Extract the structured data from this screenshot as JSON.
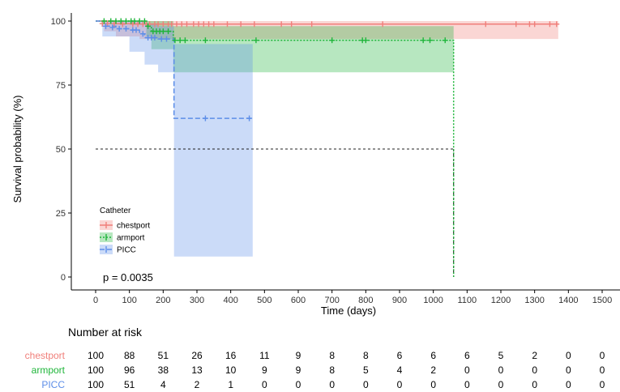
{
  "chart_data": {
    "type": "line",
    "subtype": "kaplan-meier",
    "xlabel": "Time (days)",
    "ylabel": "Survival probability (%)",
    "xlim": [
      0,
      1500
    ],
    "ylim": [
      0,
      100
    ],
    "x_ticks": [
      0,
      100,
      200,
      300,
      400,
      500,
      600,
      700,
      800,
      900,
      1000,
      1100,
      1200,
      1300,
      1400,
      1500
    ],
    "y_ticks": [
      0,
      25,
      50,
      75,
      100
    ],
    "grid": false,
    "median_reference": 50,
    "p_value": "p = 0.0035",
    "legend": {
      "title": "Catheter",
      "placement": "bottom-left",
      "entries": [
        "chestport",
        "armport",
        "PICC"
      ]
    },
    "series": [
      {
        "name": "chestport",
        "color": "#f07f7a",
        "dash": "solid",
        "steps": [
          [
            0,
            100
          ],
          [
            60,
            99
          ],
          [
            130,
            98.8
          ],
          [
            1370,
            98.8
          ]
        ],
        "ci_lower": [
          [
            0,
            100
          ],
          [
            25,
            96
          ],
          [
            60,
            94
          ],
          [
            130,
            93
          ],
          [
            1370,
            93
          ]
        ],
        "ci_upper": [
          [
            0,
            100
          ],
          [
            1370,
            100
          ]
        ],
        "censored": [
          [
            20,
            99
          ],
          [
            35,
            99
          ],
          [
            55,
            99
          ],
          [
            80,
            98.8
          ],
          [
            110,
            98.8
          ],
          [
            125,
            98.8
          ],
          [
            140,
            98.8
          ],
          [
            150,
            98.8
          ],
          [
            160,
            98.8
          ],
          [
            175,
            98.8
          ],
          [
            185,
            98.8
          ],
          [
            200,
            98.8
          ],
          [
            215,
            98.8
          ],
          [
            225,
            98.8
          ],
          [
            240,
            98.8
          ],
          [
            255,
            98.8
          ],
          [
            270,
            98.8
          ],
          [
            290,
            98.8
          ],
          [
            305,
            98.8
          ],
          [
            320,
            98.8
          ],
          [
            335,
            98.8
          ],
          [
            350,
            98.8
          ],
          [
            390,
            98.8
          ],
          [
            430,
            98.8
          ],
          [
            470,
            98.8
          ],
          [
            550,
            98.8
          ],
          [
            580,
            98.8
          ],
          [
            640,
            98.8
          ],
          [
            850,
            98.8
          ],
          [
            1155,
            98.8
          ],
          [
            1245,
            98.8
          ],
          [
            1285,
            98.8
          ],
          [
            1300,
            98.8
          ],
          [
            1345,
            98.8
          ],
          [
            1365,
            98.8
          ]
        ]
      },
      {
        "name": "armport",
        "color": "#1fb53a",
        "dash": "dotted",
        "steps": [
          [
            0,
            100
          ],
          [
            150,
            98
          ],
          [
            165,
            96
          ],
          [
            230,
            92.5
          ],
          [
            1060,
            92.5
          ],
          [
            1060,
            0
          ]
        ],
        "ci_lower": [
          [
            0,
            100
          ],
          [
            150,
            94
          ],
          [
            165,
            89
          ],
          [
            230,
            80
          ],
          [
            1060,
            80
          ]
        ],
        "ci_upper": [
          [
            0,
            100
          ],
          [
            165,
            100
          ],
          [
            230,
            98
          ],
          [
            1060,
            98
          ]
        ],
        "censored": [
          [
            25,
            100
          ],
          [
            45,
            100
          ],
          [
            60,
            100
          ],
          [
            75,
            100
          ],
          [
            90,
            100
          ],
          [
            105,
            100
          ],
          [
            115,
            100
          ],
          [
            130,
            100
          ],
          [
            145,
            100
          ],
          [
            155,
            98
          ],
          [
            170,
            96
          ],
          [
            180,
            96
          ],
          [
            190,
            96
          ],
          [
            200,
            96
          ],
          [
            215,
            96
          ],
          [
            235,
            92.5
          ],
          [
            250,
            92.5
          ],
          [
            265,
            92.5
          ],
          [
            325,
            92.5
          ],
          [
            475,
            92.5
          ],
          [
            700,
            92.5
          ],
          [
            790,
            92.5
          ],
          [
            800,
            92.5
          ],
          [
            970,
            92.5
          ],
          [
            990,
            92.5
          ],
          [
            1035,
            92.5
          ]
        ]
      },
      {
        "name": "PICC",
        "color": "#5d8ee8",
        "dash": "dashed",
        "steps": [
          [
            0,
            100
          ],
          [
            20,
            98
          ],
          [
            60,
            97
          ],
          [
            100,
            96.5
          ],
          [
            130,
            95
          ],
          [
            145,
            93.5
          ],
          [
            185,
            93
          ],
          [
            232,
            62
          ],
          [
            465,
            62
          ]
        ],
        "ci_lower": [
          [
            0,
            100
          ],
          [
            20,
            94
          ],
          [
            100,
            88
          ],
          [
            145,
            83
          ],
          [
            185,
            80
          ],
          [
            232,
            8
          ],
          [
            465,
            8
          ]
        ],
        "ci_upper": [
          [
            0,
            100
          ],
          [
            145,
            99
          ],
          [
            185,
            98
          ],
          [
            232,
            91
          ],
          [
            465,
            91
          ]
        ],
        "censored": [
          [
            30,
            98
          ],
          [
            50,
            97.5
          ],
          [
            70,
            97
          ],
          [
            90,
            97
          ],
          [
            110,
            96.5
          ],
          [
            120,
            96.5
          ],
          [
            140,
            95
          ],
          [
            155,
            93.5
          ],
          [
            165,
            93.5
          ],
          [
            175,
            93.5
          ],
          [
            195,
            93
          ],
          [
            210,
            93
          ],
          [
            325,
            62
          ],
          [
            455,
            62
          ]
        ]
      }
    ],
    "risk_table": {
      "title": "Number at risk",
      "times": [
        0,
        100,
        200,
        300,
        400,
        500,
        600,
        700,
        800,
        900,
        1000,
        1100,
        1200,
        1300,
        1400,
        1500
      ],
      "rows": [
        {
          "name": "chestport",
          "values": [
            100,
            88,
            51,
            26,
            16,
            11,
            9,
            8,
            8,
            6,
            6,
            6,
            5,
            2,
            0,
            0
          ]
        },
        {
          "name": "armport",
          "values": [
            100,
            96,
            38,
            13,
            10,
            9,
            9,
            8,
            5,
            4,
            2,
            0,
            0,
            0,
            0,
            0
          ]
        },
        {
          "name": "PICC",
          "values": [
            100,
            51,
            4,
            2,
            1,
            0,
            0,
            0,
            0,
            0,
            0,
            0,
            0,
            0,
            0,
            0
          ]
        }
      ]
    }
  }
}
